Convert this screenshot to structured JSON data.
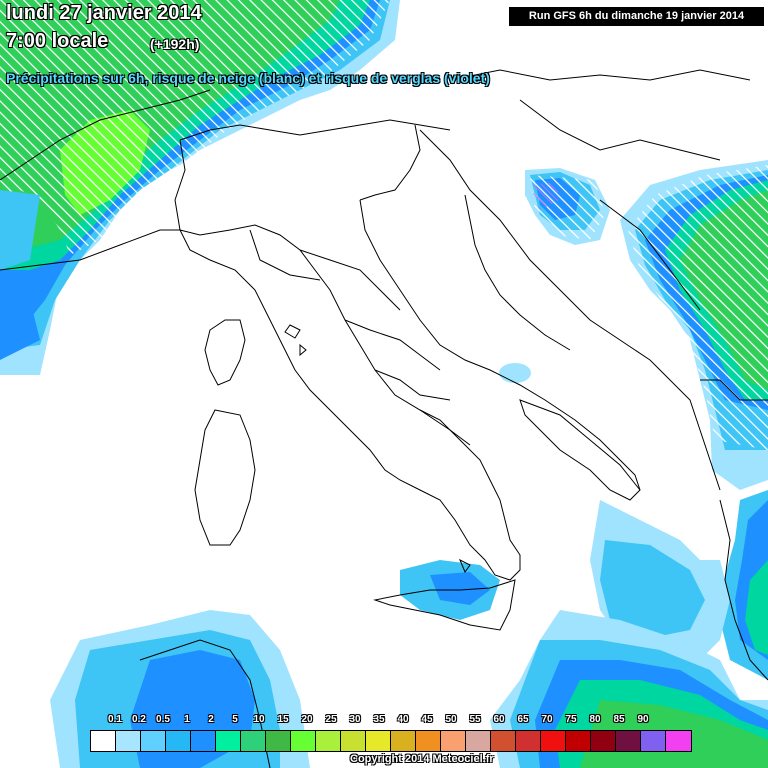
{
  "header": {
    "date": "lundi 27 janvier 2014",
    "time": "7:00 locale",
    "lead": "(+192h)",
    "subtitle": "Précipitations sur 6h, risque de neige (blanc) et risque de verglas (violet)",
    "run": "Run GFS 6h du dimanche 19 janvier 2014"
  },
  "colors": {
    "land": "#ffffff",
    "border": "#000000",
    "light_blue": "#9fe3ff",
    "mid_blue": "#3ec5f5",
    "blue": "#1e90ff",
    "teal": "#00d6a0",
    "green": "#2fcf5a",
    "lime": "#66ff33",
    "purple": "#c070ff"
  },
  "legend": {
    "labels": [
      "0.1",
      "0.2",
      "0.5",
      "1",
      "2",
      "5",
      "10",
      "15",
      "20",
      "25",
      "30",
      "35",
      "40",
      "45",
      "50",
      "55",
      "60",
      "65",
      "70",
      "75",
      "80",
      "85",
      "90"
    ],
    "colors": [
      "#ffffff",
      "#a8e6ff",
      "#5fd0ff",
      "#26b7f5",
      "#1e90ff",
      "#00f0a0",
      "#2fd07a",
      "#3fb845",
      "#66ff33",
      "#a8f03c",
      "#c8e030",
      "#e6e82a",
      "#d8b020",
      "#f09020",
      "#f8a070",
      "#d8a8a0",
      "#d05030",
      "#d03030",
      "#f01010",
      "#c00000",
      "#900010",
      "#701040",
      "#8060f0",
      "#f040f0"
    ]
  },
  "footer": {
    "copyright": "Copyright 2014 Meteociel.fr"
  }
}
